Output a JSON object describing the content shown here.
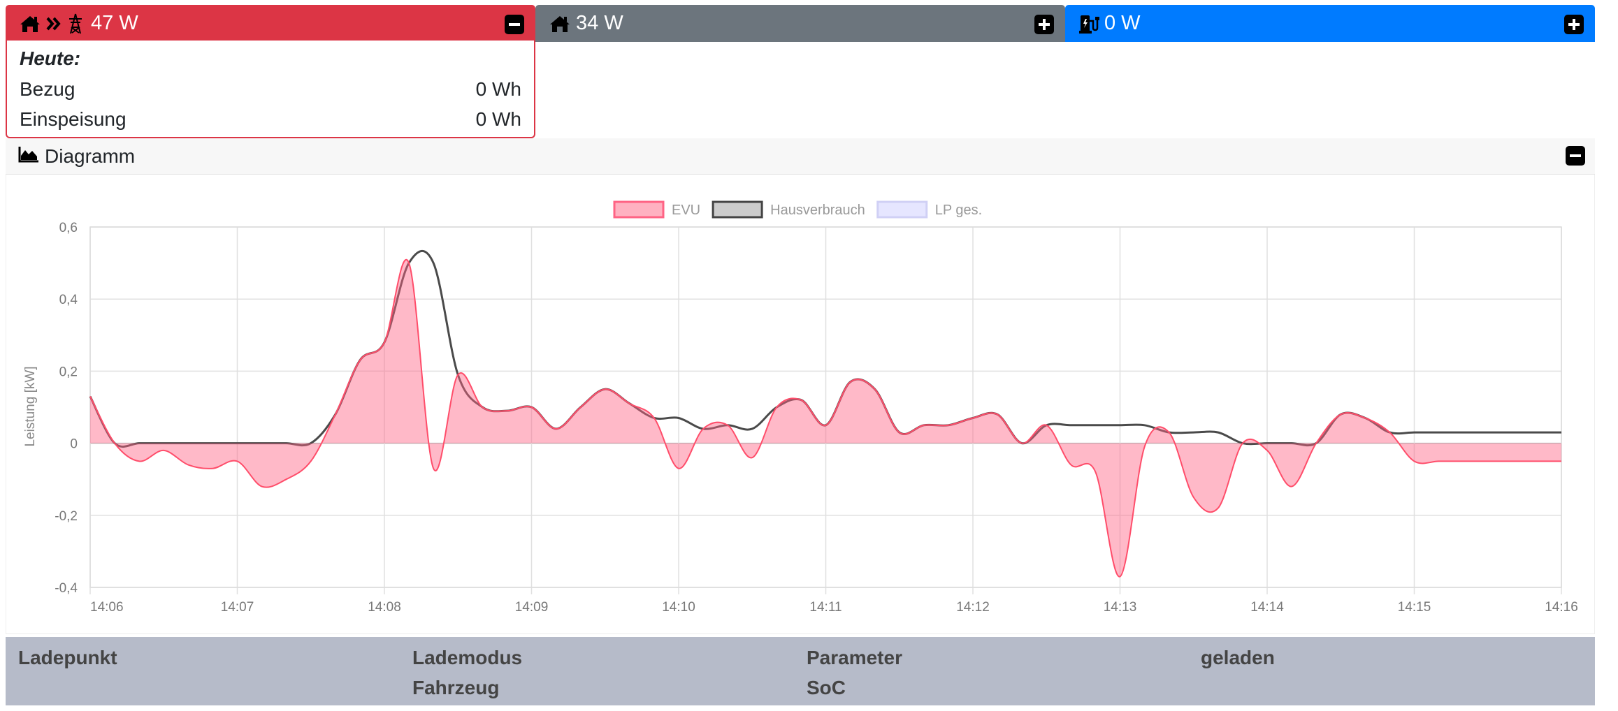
{
  "cards": {
    "evu": {
      "value": "47 W",
      "color": "#dc3545",
      "icons": [
        "home-icon",
        "double-chevron-right-icon",
        "power-tower-icon"
      ]
    },
    "house": {
      "value": "34 W",
      "color": "#6c757d",
      "icons": [
        "home-icon"
      ]
    },
    "chargepoints": {
      "value": "0 W",
      "color": "#007bff",
      "icons": [
        "charging-station-icon"
      ]
    }
  },
  "evu_details": {
    "today_label": "Heute:",
    "rows": [
      {
        "label": "Bezug",
        "value": "0 Wh"
      },
      {
        "label": "Einspeisung",
        "value": "0 Wh"
      }
    ]
  },
  "diagram": {
    "title": "Diagramm"
  },
  "chart_data": {
    "type": "area",
    "ylabel": "Leistung [kW]",
    "ylim": [
      -0.4,
      0.6
    ],
    "yticks": [
      "0,6",
      "0,4",
      "0,2",
      "0",
      "-0,2",
      "-0,4"
    ],
    "xticks": [
      "14:06",
      "14:07",
      "14:08",
      "14:09",
      "14:10",
      "14:11",
      "14:12",
      "14:13",
      "14:14",
      "14:15",
      "14:16"
    ],
    "legend": [
      {
        "name": "EVU",
        "color": "#ff6384"
      },
      {
        "name": "Hausverbrauch",
        "color": "#4a4a4a"
      },
      {
        "name": "LP ges.",
        "color": "#b5b5ff"
      }
    ],
    "legend_position": "top",
    "grid": true,
    "series": [
      {
        "name": "EVU",
        "x": [
          "14:06:00",
          "14:06:10",
          "14:06:20",
          "14:06:30",
          "14:06:40",
          "14:06:50",
          "14:07:00",
          "14:07:10",
          "14:07:20",
          "14:07:30",
          "14:07:40",
          "14:07:50",
          "14:08:00",
          "14:08:10",
          "14:08:20",
          "14:08:30",
          "14:08:40",
          "14:08:50",
          "14:09:00",
          "14:09:10",
          "14:09:20",
          "14:09:30",
          "14:09:40",
          "14:09:50",
          "14:10:00",
          "14:10:10",
          "14:10:20",
          "14:10:30",
          "14:10:40",
          "14:10:50",
          "14:11:00",
          "14:11:10",
          "14:11:20",
          "14:11:30",
          "14:11:40",
          "14:11:50",
          "14:12:00",
          "14:12:10",
          "14:12:20",
          "14:12:30",
          "14:12:40",
          "14:12:50",
          "14:13:00",
          "14:13:10",
          "14:13:20",
          "14:13:30",
          "14:13:40",
          "14:13:50",
          "14:14:00",
          "14:14:10",
          "14:14:20",
          "14:14:30",
          "14:14:40",
          "14:14:50",
          "14:15:00",
          "14:15:10",
          "14:15:20",
          "14:15:30",
          "14:15:40",
          "14:15:50",
          "14:16:00"
        ],
        "values": [
          0.13,
          0.0,
          -0.05,
          -0.02,
          -0.06,
          -0.07,
          -0.05,
          -0.12,
          -0.1,
          -0.05,
          0.08,
          0.23,
          0.28,
          0.5,
          -0.07,
          0.19,
          0.1,
          0.09,
          0.1,
          0.04,
          0.1,
          0.15,
          0.11,
          0.07,
          -0.07,
          0.04,
          0.05,
          -0.04,
          0.1,
          0.12,
          0.05,
          0.17,
          0.15,
          0.03,
          0.05,
          0.05,
          0.07,
          0.08,
          0.0,
          0.05,
          -0.06,
          -0.08,
          -0.37,
          -0.01,
          0.03,
          -0.15,
          -0.18,
          0.0,
          -0.02,
          -0.12,
          0.0,
          0.08,
          0.07,
          0.03,
          -0.05,
          -0.05,
          -0.05,
          -0.05,
          -0.05,
          -0.05,
          -0.05
        ]
      },
      {
        "name": "Hausverbrauch",
        "x": [
          "14:06:00",
          "14:06:10",
          "14:06:20",
          "14:06:30",
          "14:06:40",
          "14:06:50",
          "14:07:00",
          "14:07:10",
          "14:07:20",
          "14:07:30",
          "14:07:40",
          "14:07:50",
          "14:08:00",
          "14:08:10",
          "14:08:20",
          "14:08:30",
          "14:08:40",
          "14:08:50",
          "14:09:00",
          "14:09:10",
          "14:09:20",
          "14:09:30",
          "14:09:40",
          "14:09:50",
          "14:10:00",
          "14:10:10",
          "14:10:20",
          "14:10:30",
          "14:10:40",
          "14:10:50",
          "14:11:00",
          "14:11:10",
          "14:11:20",
          "14:11:30",
          "14:11:40",
          "14:11:50",
          "14:12:00",
          "14:12:10",
          "14:12:20",
          "14:12:30",
          "14:12:40",
          "14:12:50",
          "14:13:00",
          "14:13:10",
          "14:13:20",
          "14:13:30",
          "14:13:40",
          "14:13:50",
          "14:14:00",
          "14:14:10",
          "14:14:20",
          "14:14:30",
          "14:14:40",
          "14:14:50",
          "14:15:00",
          "14:15:10",
          "14:15:20",
          "14:15:30",
          "14:15:40",
          "14:15:50",
          "14:16:00"
        ],
        "values": [
          0.13,
          0.0,
          0.0,
          0.0,
          0.0,
          0.0,
          0.0,
          0.0,
          0.0,
          0.0,
          0.08,
          0.23,
          0.28,
          0.5,
          0.5,
          0.19,
          0.1,
          0.09,
          0.1,
          0.04,
          0.1,
          0.15,
          0.11,
          0.07,
          0.07,
          0.04,
          0.05,
          0.04,
          0.1,
          0.12,
          0.05,
          0.17,
          0.15,
          0.03,
          0.05,
          0.05,
          0.07,
          0.08,
          0.0,
          0.05,
          0.05,
          0.05,
          0.05,
          0.05,
          0.03,
          0.03,
          0.03,
          0.0,
          0.0,
          0.0,
          0.0,
          0.08,
          0.07,
          0.03,
          0.03,
          0.03,
          0.03,
          0.03,
          0.03,
          0.03,
          0.03
        ]
      }
    ]
  },
  "table": {
    "columns": [
      {
        "line1": "Ladepunkt",
        "line2": ""
      },
      {
        "line1": "Lademodus",
        "line2": "Fahrzeug"
      },
      {
        "line1": "Parameter",
        "line2": "SoC"
      },
      {
        "line1": "geladen",
        "line2": ""
      }
    ]
  }
}
